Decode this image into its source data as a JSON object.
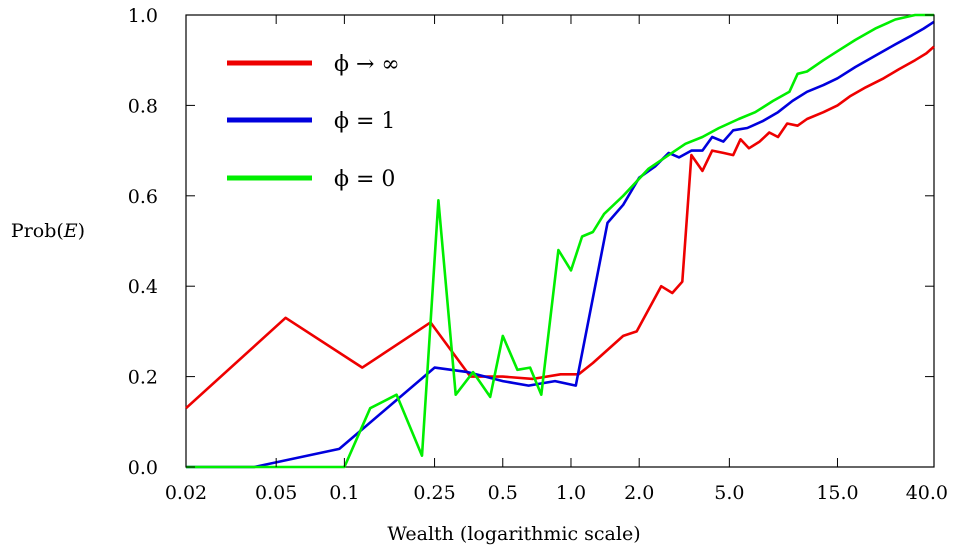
{
  "chart_data": {
    "type": "line",
    "xscale": "log",
    "xlim": [
      0.02,
      40.0
    ],
    "ylim": [
      0.0,
      1.0
    ],
    "xlabel": "Wealth (logarithmic scale)",
    "ylabel_prefix": "Prob(",
    "ylabel_var": "E",
    "ylabel_suffix": ")",
    "x_tick_values": [
      0.02,
      0.05,
      0.1,
      0.25,
      0.5,
      1.0,
      2.0,
      5.0,
      15.0,
      40.0
    ],
    "x_tick_labels": [
      "0.02",
      "0.05",
      "0.1",
      "0.25",
      "0.5",
      "1.0",
      "2.0",
      "5.0",
      "15.0",
      "40.0"
    ],
    "y_tick_values": [
      0.0,
      0.2,
      0.4,
      0.6,
      0.8,
      1.0
    ],
    "y_tick_labels": [
      "0.0",
      "0.2",
      "0.4",
      "0.6",
      "0.8",
      "1.0"
    ],
    "legend_position": "top-left",
    "series": [
      {
        "name": "ϕ → ∞",
        "color": "#ee0000",
        "points": [
          [
            0.02,
            0.13
          ],
          [
            0.055,
            0.33
          ],
          [
            0.12,
            0.22
          ],
          [
            0.24,
            0.32
          ],
          [
            0.36,
            0.2
          ],
          [
            0.5,
            0.2
          ],
          [
            0.68,
            0.195
          ],
          [
            0.9,
            0.205
          ],
          [
            1.08,
            0.205
          ],
          [
            1.25,
            0.23
          ],
          [
            1.7,
            0.29
          ],
          [
            1.95,
            0.3
          ],
          [
            2.5,
            0.4
          ],
          [
            2.8,
            0.385
          ],
          [
            3.1,
            0.41
          ],
          [
            3.4,
            0.69
          ],
          [
            3.8,
            0.655
          ],
          [
            4.2,
            0.7
          ],
          [
            4.7,
            0.695
          ],
          [
            5.2,
            0.69
          ],
          [
            5.6,
            0.725
          ],
          [
            6.1,
            0.705
          ],
          [
            6.8,
            0.72
          ],
          [
            7.5,
            0.74
          ],
          [
            8.2,
            0.73
          ],
          [
            9.0,
            0.76
          ],
          [
            10.0,
            0.755
          ],
          [
            11.0,
            0.77
          ],
          [
            13.0,
            0.785
          ],
          [
            15.0,
            0.8
          ],
          [
            17.0,
            0.82
          ],
          [
            20.0,
            0.84
          ],
          [
            24.0,
            0.86
          ],
          [
            28.0,
            0.88
          ],
          [
            33.0,
            0.9
          ],
          [
            37.0,
            0.915
          ],
          [
            40.0,
            0.93
          ]
        ]
      },
      {
        "name": "ϕ = 1",
        "color": "#0000dd",
        "points": [
          [
            0.02,
            0.0
          ],
          [
            0.04,
            0.0
          ],
          [
            0.095,
            0.04
          ],
          [
            0.25,
            0.22
          ],
          [
            0.35,
            0.21
          ],
          [
            0.5,
            0.19
          ],
          [
            0.65,
            0.18
          ],
          [
            0.85,
            0.19
          ],
          [
            1.05,
            0.18
          ],
          [
            1.45,
            0.54
          ],
          [
            1.7,
            0.58
          ],
          [
            2.0,
            0.64
          ],
          [
            2.35,
            0.665
          ],
          [
            2.7,
            0.695
          ],
          [
            3.0,
            0.685
          ],
          [
            3.4,
            0.7
          ],
          [
            3.8,
            0.7
          ],
          [
            4.2,
            0.73
          ],
          [
            4.7,
            0.72
          ],
          [
            5.2,
            0.745
          ],
          [
            6.0,
            0.75
          ],
          [
            7.0,
            0.765
          ],
          [
            8.2,
            0.785
          ],
          [
            9.5,
            0.81
          ],
          [
            11.0,
            0.83
          ],
          [
            13.0,
            0.845
          ],
          [
            15.0,
            0.86
          ],
          [
            18.0,
            0.885
          ],
          [
            22.0,
            0.91
          ],
          [
            27.0,
            0.935
          ],
          [
            32.0,
            0.955
          ],
          [
            36.0,
            0.97
          ],
          [
            40.0,
            0.985
          ]
        ]
      },
      {
        "name": "ϕ = 0",
        "color": "#00ee00",
        "points": [
          [
            0.02,
            0.0
          ],
          [
            0.1,
            0.0
          ],
          [
            0.13,
            0.13
          ],
          [
            0.17,
            0.16
          ],
          [
            0.22,
            0.025
          ],
          [
            0.26,
            0.59
          ],
          [
            0.31,
            0.16
          ],
          [
            0.37,
            0.21
          ],
          [
            0.44,
            0.155
          ],
          [
            0.5,
            0.29
          ],
          [
            0.58,
            0.215
          ],
          [
            0.66,
            0.22
          ],
          [
            0.74,
            0.16
          ],
          [
            0.88,
            0.48
          ],
          [
            1.0,
            0.435
          ],
          [
            1.12,
            0.51
          ],
          [
            1.25,
            0.52
          ],
          [
            1.4,
            0.56
          ],
          [
            1.7,
            0.6
          ],
          [
            2.2,
            0.66
          ],
          [
            2.7,
            0.69
          ],
          [
            3.2,
            0.715
          ],
          [
            3.8,
            0.73
          ],
          [
            4.5,
            0.75
          ],
          [
            5.5,
            0.77
          ],
          [
            6.5,
            0.785
          ],
          [
            7.8,
            0.81
          ],
          [
            9.2,
            0.83
          ],
          [
            10.0,
            0.87
          ],
          [
            11.0,
            0.875
          ],
          [
            13.0,
            0.9
          ],
          [
            15.0,
            0.92
          ],
          [
            18.0,
            0.945
          ],
          [
            22.0,
            0.97
          ],
          [
            27.0,
            0.99
          ],
          [
            33.0,
            1.0
          ],
          [
            40.0,
            1.0
          ]
        ]
      }
    ]
  }
}
